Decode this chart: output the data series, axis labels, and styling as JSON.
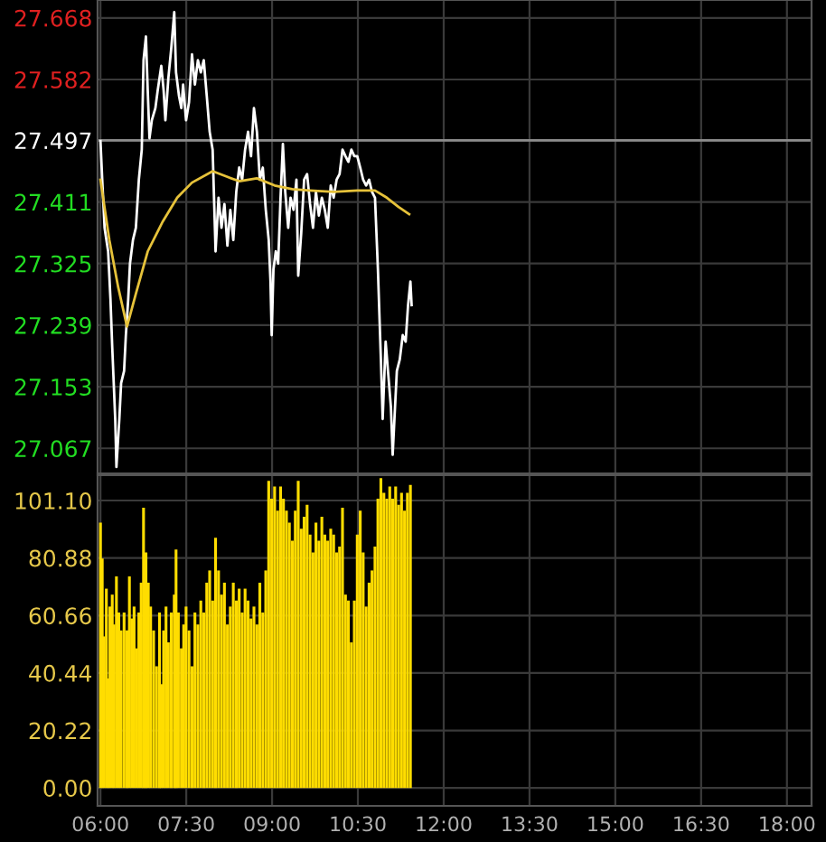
{
  "chart_data": [
    {
      "type": "line",
      "tick_labels": "y",
      "grid": true,
      "xlim": [
        5.95,
        18.43
      ],
      "ylim": [
        27.032,
        27.693
      ],
      "yticks": [
        27.067,
        27.153,
        27.239,
        27.325,
        27.411,
        27.497,
        27.582,
        27.668
      ],
      "xticks": [
        {
          "value": 6,
          "label": null
        },
        {
          "value": 7.5,
          "label": null
        },
        {
          "value": 9,
          "label": null
        },
        {
          "value": 10.5,
          "label": null
        },
        {
          "value": 12,
          "label": null
        },
        {
          "value": 13.5,
          "label": null
        },
        {
          "value": 15,
          "label": null
        },
        {
          "value": 16.5,
          "label": null
        },
        {
          "value": 18,
          "label": null
        }
      ],
      "ref_lines": [
        {
          "axis": "y",
          "value": 27.497,
          "label": null,
          "color": "#8c8c8c"
        }
      ],
      "series": [
        {
          "color": "#ffffff",
          "x": [
            6.0,
            6.031,
            6.072,
            6.134,
            6.175,
            6.206,
            6.258,
            6.279,
            6.33,
            6.361,
            6.413,
            6.444,
            6.485,
            6.516,
            6.568,
            6.619,
            6.671,
            6.722,
            6.753,
            6.795,
            6.826,
            6.857,
            6.898,
            6.96,
            7.001,
            7.063,
            7.104,
            7.135,
            7.187,
            7.238,
            7.29,
            7.321,
            7.373,
            7.414,
            7.445,
            7.496,
            7.548,
            7.6,
            7.651,
            7.703,
            7.754,
            7.806,
            7.858,
            7.909,
            7.961,
            8.012,
            8.064,
            8.116,
            8.167,
            8.219,
            8.27,
            8.322,
            8.374,
            8.425,
            8.477,
            8.528,
            8.58,
            8.632,
            8.683,
            8.735,
            8.786,
            8.838,
            8.89,
            8.941,
            8.972,
            8.993,
            9.024,
            9.065,
            9.106,
            9.148,
            9.189,
            9.23,
            9.282,
            9.323,
            9.375,
            9.426,
            9.457,
            9.509,
            9.56,
            9.612,
            9.664,
            9.715,
            9.767,
            9.818,
            9.87,
            9.922,
            9.973,
            10.025,
            10.076,
            10.128,
            10.18,
            10.231,
            10.283,
            10.334,
            10.386,
            10.438,
            10.489,
            10.541,
            10.592,
            10.644,
            10.696,
            10.747,
            10.799,
            10.85,
            10.902,
            10.933,
            10.985,
            11.026,
            11.077,
            11.108,
            11.139,
            11.181,
            11.232,
            11.284,
            11.335,
            11.377,
            11.418,
            11.439
          ],
          "values": [
            27.496,
            27.442,
            27.375,
            27.342,
            27.275,
            27.208,
            27.108,
            27.041,
            27.108,
            27.158,
            27.175,
            27.225,
            27.275,
            27.325,
            27.358,
            27.375,
            27.442,
            27.484,
            27.609,
            27.642,
            27.567,
            27.5,
            27.525,
            27.542,
            27.567,
            27.601,
            27.567,
            27.525,
            27.584,
            27.626,
            27.676,
            27.592,
            27.559,
            27.542,
            27.575,
            27.525,
            27.55,
            27.617,
            27.575,
            27.609,
            27.592,
            27.609,
            27.559,
            27.509,
            27.484,
            27.342,
            27.417,
            27.375,
            27.408,
            27.35,
            27.4,
            27.358,
            27.425,
            27.459,
            27.442,
            27.484,
            27.509,
            27.475,
            27.542,
            27.509,
            27.442,
            27.459,
            27.4,
            27.358,
            27.3,
            27.225,
            27.317,
            27.342,
            27.325,
            27.417,
            27.492,
            27.425,
            27.375,
            27.417,
            27.4,
            27.442,
            27.308,
            27.367,
            27.442,
            27.45,
            27.408,
            27.375,
            27.425,
            27.392,
            27.417,
            27.4,
            27.375,
            27.434,
            27.417,
            27.442,
            27.45,
            27.484,
            27.475,
            27.467,
            27.484,
            27.475,
            27.475,
            27.459,
            27.442,
            27.434,
            27.442,
            27.425,
            27.417,
            27.317,
            27.191,
            27.108,
            27.216,
            27.175,
            27.125,
            27.058,
            27.108,
            27.175,
            27.191,
            27.225,
            27.216,
            27.267,
            27.3,
            27.267
          ]
        },
        {
          "color": "#e6c23a",
          "x": [
            6.0,
            6.155,
            6.31,
            6.464,
            6.619,
            6.826,
            7.084,
            7.342,
            7.6,
            7.961,
            8.219,
            8.425,
            8.735,
            9.044,
            9.354,
            9.664,
            10.076,
            10.489,
            10.799,
            11.005,
            11.212,
            11.397
          ],
          "values": [
            27.442,
            27.358,
            27.292,
            27.237,
            27.283,
            27.342,
            27.383,
            27.417,
            27.438,
            27.454,
            27.446,
            27.44,
            27.444,
            27.434,
            27.429,
            27.427,
            27.425,
            27.427,
            27.427,
            27.417,
            27.404,
            27.394
          ]
        }
      ]
    },
    {
      "type": "bar",
      "grid": true,
      "xlim": [
        5.95,
        18.43
      ],
      "ylim": [
        -6.3,
        110
      ],
      "yticks": [
        {
          "value": 0,
          "label": "0.00"
        },
        20.22,
        40.44,
        60.66,
        80.88,
        {
          "value": 101.1,
          "label": "101.10"
        }
      ],
      "xticks": [
        {
          "value": 6,
          "label": "06:00"
        },
        {
          "value": 7.5,
          "label": "07:30"
        },
        {
          "value": 9,
          "label": "09:00"
        },
        {
          "value": 10.5,
          "label": "10:30"
        },
        {
          "value": 12,
          "label": "12:00"
        },
        {
          "value": 13.5,
          "label": "13:30"
        },
        {
          "value": 15,
          "label": "15:00"
        },
        {
          "value": 16.5,
          "label": "16:30"
        },
        {
          "value": 18,
          "label": "18:00"
        }
      ],
      "series": [
        {
          "color": "#ffdd00",
          "x": [
            6.0,
            6.031,
            6.062,
            6.103,
            6.134,
            6.165,
            6.206,
            6.237,
            6.279,
            6.32,
            6.361,
            6.413,
            6.464,
            6.506,
            6.547,
            6.588,
            6.63,
            6.671,
            6.712,
            6.753,
            6.795,
            6.836,
            6.877,
            6.929,
            6.98,
            7.032,
            7.063,
            7.104,
            7.146,
            7.187,
            7.238,
            7.29,
            7.321,
            7.362,
            7.414,
            7.455,
            7.496,
            7.548,
            7.6,
            7.651,
            7.703,
            7.754,
            7.806,
            7.858,
            7.909,
            7.961,
            8.012,
            8.064,
            8.116,
            8.167,
            8.219,
            8.27,
            8.322,
            8.374,
            8.425,
            8.477,
            8.528,
            8.58,
            8.632,
            8.683,
            8.735,
            8.786,
            8.838,
            8.89,
            8.941,
            8.993,
            9.044,
            9.096,
            9.148,
            9.199,
            9.251,
            9.302,
            9.354,
            9.406,
            9.457,
            9.509,
            9.56,
            9.612,
            9.664,
            9.715,
            9.767,
            9.818,
            9.87,
            9.922,
            9.973,
            10.025,
            10.076,
            10.128,
            10.18,
            10.231,
            10.283,
            10.334,
            10.386,
            10.438,
            10.489,
            10.541,
            10.592,
            10.644,
            10.696,
            10.747,
            10.799,
            10.85,
            10.902,
            10.954,
            11.005,
            11.057,
            11.108,
            11.16,
            11.212,
            11.263,
            11.315,
            11.366,
            11.418
          ],
          "values": [
            93.3,
            80.7,
            53.3,
            70.1,
            38.5,
            63.8,
            68.0,
            57.5,
            74.4,
            61.7,
            55.4,
            61.7,
            55.4,
            74.4,
            59.6,
            63.8,
            49.1,
            61.7,
            72.2,
            98.6,
            82.8,
            72.2,
            63.8,
            55.4,
            42.8,
            61.7,
            36.5,
            55.4,
            63.8,
            51.2,
            61.7,
            68.0,
            83.9,
            61.7,
            49.1,
            57.5,
            63.8,
            55.4,
            42.8,
            61.7,
            57.5,
            65.9,
            61.7,
            72.2,
            76.5,
            65.9,
            88.0,
            76.5,
            68.0,
            72.2,
            57.5,
            63.8,
            72.2,
            65.9,
            70.1,
            61.7,
            70.1,
            65.9,
            59.6,
            63.8,
            57.5,
            72.2,
            61.7,
            76.5,
            108.0,
            101.7,
            106.0,
            97.5,
            106.0,
            101.7,
            97.5,
            93.3,
            87.0,
            97.5,
            108.0,
            91.2,
            95.4,
            99.6,
            89.1,
            82.8,
            93.3,
            87.0,
            95.4,
            89.1,
            87.0,
            91.2,
            89.1,
            82.8,
            84.9,
            98.6,
            68.0,
            65.9,
            51.2,
            65.9,
            89.1,
            97.5,
            82.8,
            63.8,
            72.2,
            76.5,
            84.9,
            101.7,
            109.0,
            103.8,
            101.7,
            106.0,
            101.7,
            106.0,
            99.6,
            103.8,
            97.5,
            103.8,
            106.6
          ]
        }
      ]
    }
  ]
}
